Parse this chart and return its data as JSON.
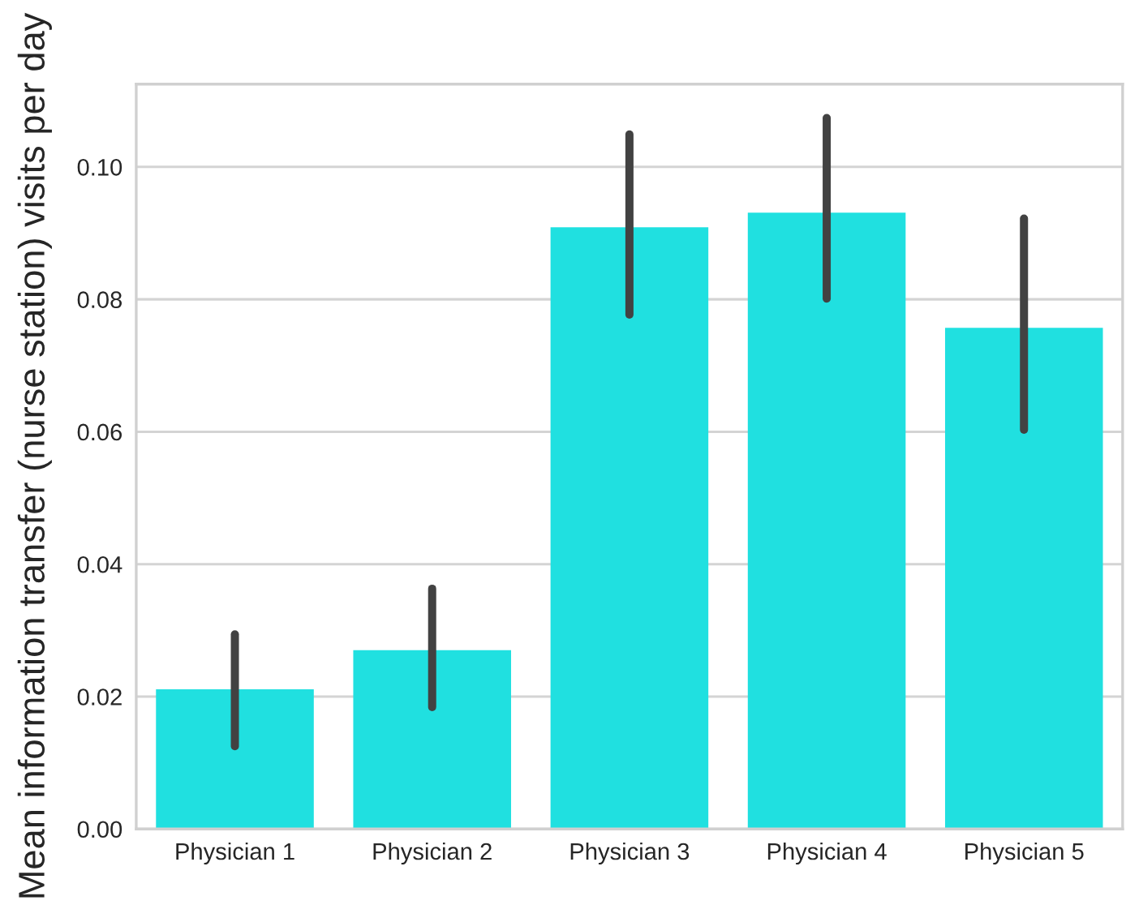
{
  "chart_data": {
    "type": "bar",
    "ylabel": "Mean information transfer (nurse station) visits per day",
    "categories": [
      "Physician 1",
      "Physician 2",
      "Physician 3",
      "Physician 4",
      "Physician 5"
    ],
    "values": [
      0.0211,
      0.027,
      0.0909,
      0.0931,
      0.0757
    ],
    "errors": [
      [
        0.0125,
        0.0294
      ],
      [
        0.0184,
        0.0363
      ],
      [
        0.0777,
        0.1049
      ],
      [
        0.0801,
        0.1074
      ],
      [
        0.0603,
        0.0922
      ]
    ],
    "color": "#20e0e0",
    "ylim": [
      0,
      0.1125
    ],
    "yticks": [
      {
        "value": 0,
        "label": "0.00"
      },
      0.02,
      0.04,
      0.06,
      0.08,
      {
        "value": 0.1,
        "label": "0.10"
      }
    ],
    "grid": "y"
  }
}
